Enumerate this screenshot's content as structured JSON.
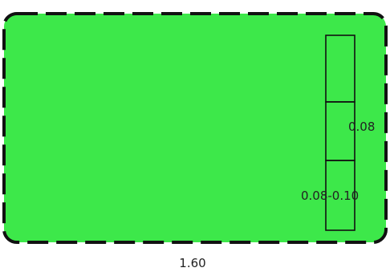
{
  "diagram": {
    "colors": {
      "fill": "#3de84a",
      "stroke": "#111111",
      "background": "#ffffff",
      "text": "#222222"
    },
    "outline_style": "dashed",
    "labels": {
      "width": "1.60",
      "segment_middle": "0.08",
      "segment_bottom": "0.08-0.10"
    }
  }
}
